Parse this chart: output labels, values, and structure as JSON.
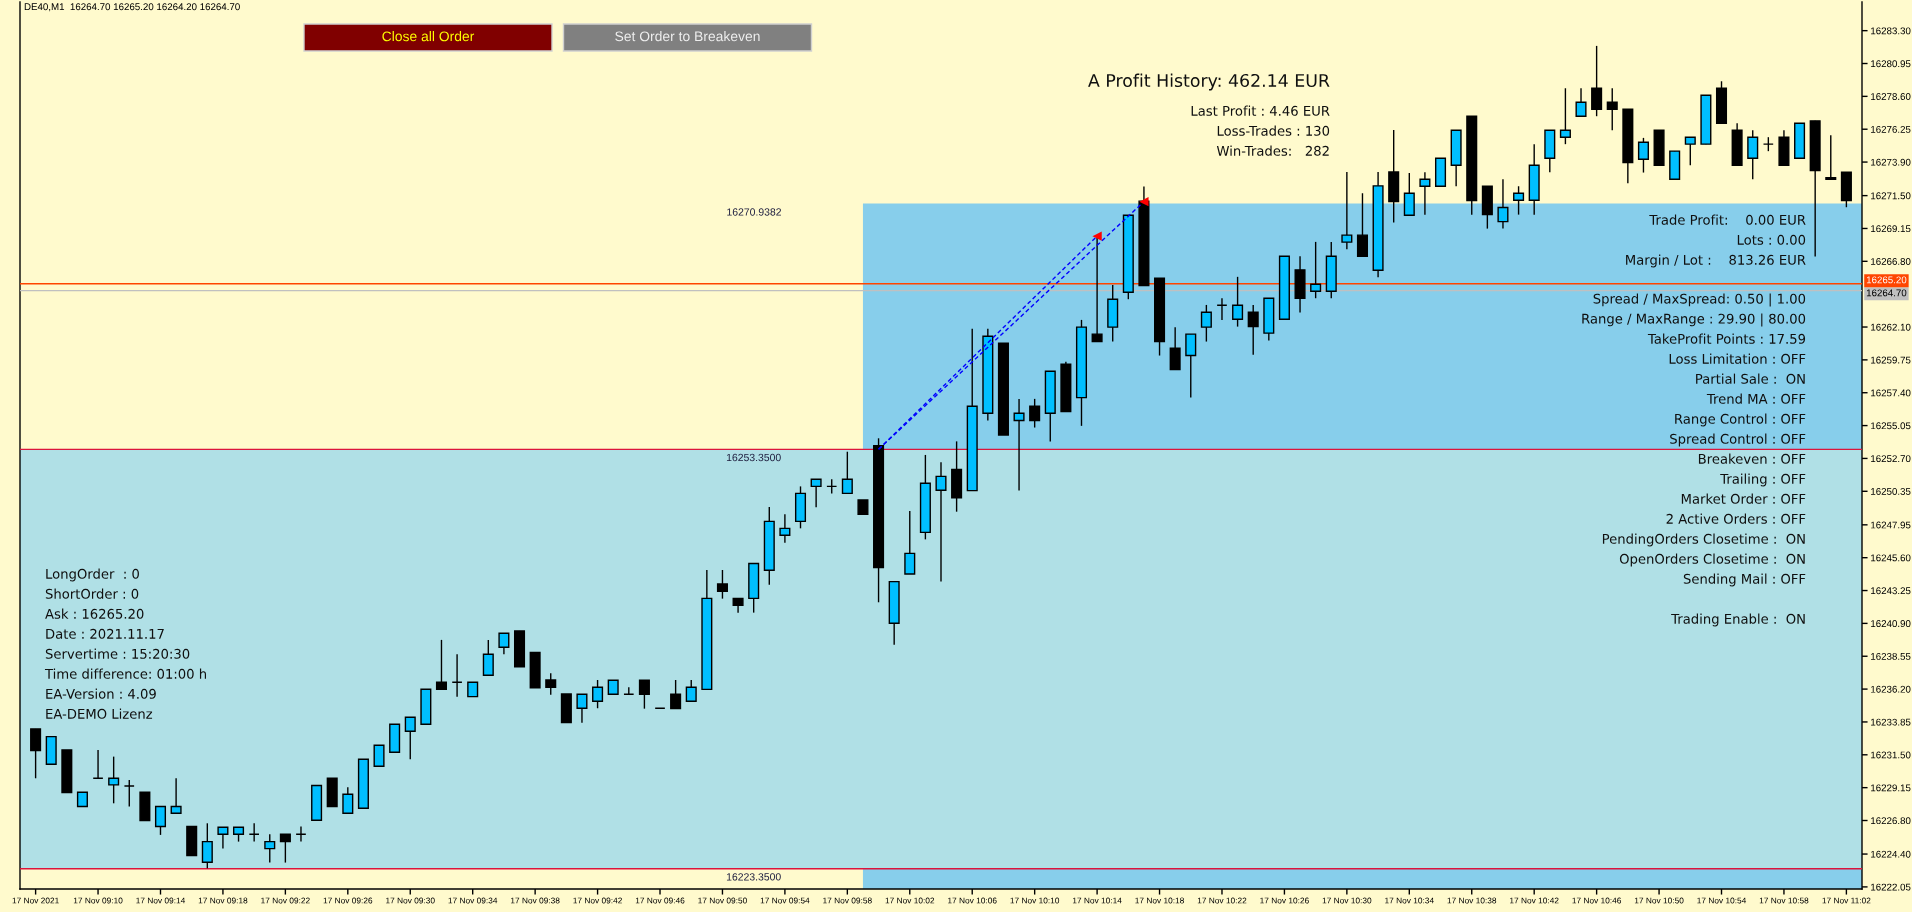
{
  "chart_data": {
    "type": "candlestick",
    "title": "DE40,M1  16264.70 16265.20 16264.20 16264.70",
    "x": [
      "2021-11-17T09:06",
      "2021-11-17T09:07",
      "2021-11-17T09:08",
      "2021-11-17T09:09",
      "2021-11-17T09:10",
      "2021-11-17T09:11",
      "2021-11-17T09:12",
      "2021-11-17T09:13",
      "2021-11-17T09:14",
      "2021-11-17T09:15",
      "2021-11-17T09:16",
      "2021-11-17T09:17",
      "2021-11-17T09:18",
      "2021-11-17T09:19",
      "2021-11-17T09:20",
      "2021-11-17T09:21",
      "2021-11-17T09:22",
      "2021-11-17T09:23",
      "2021-11-17T09:24",
      "2021-11-17T09:25",
      "2021-11-17T09:26",
      "2021-11-17T09:27",
      "2021-11-17T09:28",
      "2021-11-17T09:29",
      "2021-11-17T09:30",
      "2021-11-17T09:31",
      "2021-11-17T09:32",
      "2021-11-17T09:33",
      "2021-11-17T09:34",
      "2021-11-17T09:35",
      "2021-11-17T09:36",
      "2021-11-17T09:37",
      "2021-11-17T09:38",
      "2021-11-17T09:39",
      "2021-11-17T09:40",
      "2021-11-17T09:41",
      "2021-11-17T09:42",
      "2021-11-17T09:43",
      "2021-11-17T09:44",
      "2021-11-17T09:45",
      "2021-11-17T09:46",
      "2021-11-17T09:47",
      "2021-11-17T09:48",
      "2021-11-17T09:49",
      "2021-11-17T09:50",
      "2021-11-17T09:51",
      "2021-11-17T09:52",
      "2021-11-17T09:53",
      "2021-11-17T09:54",
      "2021-11-17T09:55",
      "2021-11-17T09:56",
      "2021-11-17T09:57",
      "2021-11-17T09:58",
      "2021-11-17T09:59",
      "2021-11-17T10:00",
      "2021-11-17T10:01",
      "2021-11-17T10:02",
      "2021-11-17T10:03",
      "2021-11-17T10:04",
      "2021-11-17T10:05",
      "2021-11-17T10:06",
      "2021-11-17T10:07",
      "2021-11-17T10:08",
      "2021-11-17T10:09",
      "2021-11-17T10:10",
      "2021-11-17T10:11",
      "2021-11-17T10:12",
      "2021-11-17T10:13",
      "2021-11-17T10:14",
      "2021-11-17T10:15",
      "2021-11-17T10:16",
      "2021-11-17T10:17",
      "2021-11-17T10:18",
      "2021-11-17T10:19",
      "2021-11-17T10:20",
      "2021-11-17T10:21",
      "2021-11-17T10:22",
      "2021-11-17T10:23",
      "2021-11-17T10:24",
      "2021-11-17T10:25",
      "2021-11-17T10:26",
      "2021-11-17T10:27",
      "2021-11-17T10:28",
      "2021-11-17T10:29",
      "2021-11-17T10:30",
      "2021-11-17T10:31",
      "2021-11-17T10:32",
      "2021-11-17T10:33",
      "2021-11-17T10:34",
      "2021-11-17T10:35",
      "2021-11-17T10:36",
      "2021-11-17T10:37",
      "2021-11-17T10:38",
      "2021-11-17T10:39",
      "2021-11-17T10:40",
      "2021-11-17T10:41",
      "2021-11-17T10:42",
      "2021-11-17T10:43",
      "2021-11-17T10:44",
      "2021-11-17T10:45",
      "2021-11-17T10:46",
      "2021-11-17T10:47",
      "2021-11-17T10:48",
      "2021-11-17T10:49",
      "2021-11-17T10:50",
      "2021-11-17T10:51",
      "2021-11-17T10:52",
      "2021-11-17T10:53",
      "2021-11-17T10:54",
      "2021-11-17T10:55",
      "2021-11-17T10:56",
      "2021-11-17T10:57",
      "2021-11-17T10:58",
      "2021-11-17T10:59",
      "2021-11-17T11:00",
      "2021-11-17T11:01",
      "2021-11-17T11:02"
    ],
    "ohlc": [
      [
        16233.35,
        16233.35,
        16229.82,
        16231.8
      ],
      [
        16230.82,
        16232.8,
        16230.82,
        16232.8
      ],
      [
        16231.85,
        16231.85,
        16228.8,
        16228.8
      ],
      [
        16227.8,
        16228.82,
        16227.8,
        16228.82
      ],
      [
        16229.82,
        16231.85,
        16229.82,
        16229.82
      ],
      [
        16229.35,
        16231.37,
        16228.03,
        16229.82
      ],
      [
        16229.27,
        16229.7,
        16227.8,
        16229.27
      ],
      [
        16228.82,
        16228.82,
        16226.79,
        16226.79
      ],
      [
        16226.37,
        16227.8,
        16225.77,
        16227.8
      ],
      [
        16227.32,
        16229.82,
        16227.32,
        16227.8
      ],
      [
        16226.37,
        16226.37,
        16224.29,
        16224.29
      ],
      [
        16223.81,
        16226.6,
        16223.38,
        16225.29
      ],
      [
        16225.82,
        16226.32,
        16224.79,
        16226.32
      ],
      [
        16225.82,
        16226.32,
        16225.29,
        16226.32
      ],
      [
        16225.82,
        16226.6,
        16225.29,
        16225.82
      ],
      [
        16224.79,
        16225.82,
        16223.79,
        16225.29
      ],
      [
        16225.82,
        16225.82,
        16223.79,
        16225.29
      ],
      [
        16225.82,
        16226.37,
        16225.29,
        16225.82
      ],
      [
        16226.82,
        16229.3,
        16226.82,
        16229.3
      ],
      [
        16229.82,
        16229.82,
        16227.8,
        16227.8
      ],
      [
        16227.32,
        16229.18,
        16227.32,
        16228.68
      ],
      [
        16227.68,
        16231.18,
        16227.68,
        16231.18
      ],
      [
        16230.68,
        16232.18,
        16230.68,
        16232.18
      ],
      [
        16231.68,
        16233.69,
        16231.68,
        16233.69
      ],
      [
        16233.18,
        16234.19,
        16231.18,
        16234.19
      ],
      [
        16233.69,
        16236.19,
        16233.69,
        16236.19
      ],
      [
        16236.69,
        16239.72,
        16236.19,
        16236.19
      ],
      [
        16236.69,
        16238.69,
        16235.66,
        16236.69
      ],
      [
        16235.66,
        16236.69,
        16235.66,
        16236.69
      ],
      [
        16237.19,
        16239.72,
        16237.19,
        16238.69
      ],
      [
        16239.19,
        16240.19,
        16238.69,
        16240.19
      ],
      [
        16240.36,
        16240.36,
        16237.8,
        16237.8
      ],
      [
        16238.83,
        16238.83,
        16236.3,
        16236.3
      ],
      [
        16236.85,
        16237.33,
        16235.8,
        16236.33
      ],
      [
        16235.85,
        16235.85,
        16233.8,
        16233.8
      ],
      [
        16234.83,
        16235.83,
        16233.8,
        16235.83
      ],
      [
        16235.33,
        16236.85,
        16234.83,
        16236.33
      ],
      [
        16235.83,
        16236.83,
        16235.83,
        16236.83
      ],
      [
        16235.83,
        16236.33,
        16235.83,
        16235.83
      ],
      [
        16236.83,
        16236.83,
        16234.8,
        16235.83
      ],
      [
        16234.83,
        16234.83,
        16234.83,
        16234.83
      ],
      [
        16235.83,
        16236.85,
        16234.8,
        16234.8
      ],
      [
        16235.33,
        16236.85,
        16235.33,
        16236.33
      ],
      [
        16236.18,
        16244.72,
        16236.18,
        16242.69
      ],
      [
        16243.72,
        16244.72,
        16242.67,
        16243.19
      ],
      [
        16242.69,
        16242.69,
        16241.67,
        16242.19
      ],
      [
        16242.69,
        16245.18,
        16241.67,
        16245.18
      ],
      [
        16244.7,
        16249.23,
        16243.67,
        16248.2
      ],
      [
        16247.2,
        16248.7,
        16246.67,
        16247.7
      ],
      [
        16248.2,
        16250.7,
        16247.7,
        16250.2
      ],
      [
        16250.7,
        16251.21,
        16249.2,
        16251.21
      ],
      [
        16250.7,
        16251.21,
        16250.2,
        16250.7
      ],
      [
        16250.2,
        16253.18,
        16250.2,
        16251.21
      ],
      [
        16249.73,
        16249.73,
        16248.7,
        16248.7
      ],
      [
        16253.61,
        16254.14,
        16242.41,
        16244.89
      ],
      [
        16240.91,
        16243.89,
        16239.38,
        16243.89
      ],
      [
        16244.43,
        16248.94,
        16244.43,
        16245.91
      ],
      [
        16247.41,
        16252.95,
        16246.91,
        16250.92
      ],
      [
        16250.42,
        16252.42,
        16243.89,
        16251.42
      ],
      [
        16251.92,
        16253.92,
        16248.89,
        16249.89
      ],
      [
        16250.4,
        16261.97,
        16250.4,
        16256.43
      ],
      [
        16255.93,
        16261.97,
        16255.41,
        16261.44
      ],
      [
        16260.94,
        16260.94,
        16254.38,
        16254.38
      ],
      [
        16255.41,
        16256.96,
        16250.4,
        16255.93
      ],
      [
        16256.43,
        16256.96,
        16254.91,
        16255.41
      ],
      [
        16255.93,
        16258.94,
        16253.91,
        16258.94
      ],
      [
        16259.44,
        16259.61,
        16256.05,
        16256.05
      ],
      [
        16257.05,
        16262.61,
        16255.03,
        16262.09
      ],
      [
        16261.59,
        16268.57,
        16261.06,
        16261.06
      ],
      [
        16262.09,
        16265.11,
        16261.06,
        16264.09
      ],
      [
        16264.59,
        16270.1,
        16264.09,
        16270.1
      ],
      [
        16271.1,
        16272.15,
        16265.07,
        16265.07
      ],
      [
        16265.59,
        16265.59,
        16260.06,
        16261.06
      ],
      [
        16260.58,
        16262.09,
        16259.06,
        16259.06
      ],
      [
        16260.06,
        16261.59,
        16257.05,
        16261.59
      ],
      [
        16262.09,
        16263.68,
        16261.06,
        16263.16
      ],
      [
        16263.66,
        16264.16,
        16262.61,
        16263.66
      ],
      [
        16262.66,
        16265.69,
        16262.13,
        16263.66
      ],
      [
        16263.16,
        16263.68,
        16260.11,
        16262.13
      ],
      [
        16261.66,
        16264.16,
        16261.13,
        16264.16
      ],
      [
        16262.66,
        16267.16,
        16262.66,
        16267.16
      ],
      [
        16266.19,
        16267.16,
        16263.13,
        16264.16
      ],
      [
        16264.66,
        16268.19,
        16264.16,
        16265.16
      ],
      [
        16264.66,
        16268.19,
        16264.16,
        16267.16
      ],
      [
        16268.17,
        16273.19,
        16267.67,
        16268.67
      ],
      [
        16268.67,
        16271.67,
        16267.16,
        16267.16
      ],
      [
        16266.16,
        16273.19,
        16265.66,
        16272.2
      ],
      [
        16273.19,
        16276.2,
        16269.57,
        16271.07
      ],
      [
        16270.1,
        16273.12,
        16270.1,
        16271.67
      ],
      [
        16272.17,
        16273.17,
        16270.14,
        16272.67
      ],
      [
        16272.17,
        16274.17,
        16272.17,
        16274.17
      ],
      [
        16273.67,
        16276.18,
        16272.17,
        16276.18
      ],
      [
        16277.18,
        16277.18,
        16270.14,
        16271.15
      ],
      [
        16272.17,
        16272.17,
        16269.14,
        16270.14
      ],
      [
        16269.64,
        16272.67,
        16269.14,
        16270.65
      ],
      [
        16271.17,
        16272.17,
        16270.14,
        16271.67
      ],
      [
        16271.17,
        16275.18,
        16270.14,
        16273.67
      ],
      [
        16274.17,
        16276.18,
        16273.17,
        16276.18
      ],
      [
        16275.68,
        16279.18,
        16275.18,
        16276.18
      ],
      [
        16277.18,
        16279.18,
        16277.18,
        16278.18
      ],
      [
        16279.18,
        16282.21,
        16277.18,
        16277.68
      ],
      [
        16278.18,
        16279.18,
        16276.18,
        16277.68
      ],
      [
        16277.68,
        16277.68,
        16272.39,
        16273.87
      ],
      [
        16274.1,
        16275.63,
        16273.15,
        16275.32
      ],
      [
        16276.18,
        16276.18,
        16273.67,
        16273.67
      ],
      [
        16272.67,
        16274.68,
        16272.67,
        16274.68
      ],
      [
        16275.18,
        16275.68,
        16273.67,
        16275.68
      ],
      [
        16275.18,
        16278.68,
        16275.18,
        16278.68
      ],
      [
        16279.18,
        16279.68,
        16276.68,
        16276.68
      ],
      [
        16276.18,
        16276.68,
        16273.67,
        16273.67
      ],
      [
        16274.17,
        16276.18,
        16272.67,
        16275.68
      ],
      [
        16275.18,
        16275.68,
        16274.68,
        16275.18
      ],
      [
        16275.68,
        16276.18,
        16273.67,
        16273.67
      ],
      [
        16274.17,
        16276.68,
        16274.17,
        16276.68
      ],
      [
        16276.85,
        16276.85,
        16267.14,
        16273.29
      ],
      [
        16272.79,
        16275.82,
        16272.67,
        16272.67
      ],
      [
        16273.17,
        16273.17,
        16270.67,
        16271.15
      ]
    ],
    "colors": [
      "#000000",
      "#00bfff",
      "#000000",
      "#00bfff",
      "#000000",
      "#00bfff",
      "#000000",
      "#000000",
      "#00bfff",
      "#00bfff",
      "#000000",
      "#00bfff",
      "#00bfff",
      "#00bfff",
      "#000000",
      "#00bfff",
      "#000000",
      "#000000",
      "#00bfff",
      "#000000",
      "#00bfff",
      "#00bfff",
      "#00bfff",
      "#00bfff",
      "#00bfff",
      "#00bfff",
      "#000000",
      "#000000",
      "#00bfff",
      "#00bfff",
      "#00bfff",
      "#000000",
      "#000000",
      "#000000",
      "#000000",
      "#00bfff",
      "#00bfff",
      "#00bfff",
      "#000000",
      "#000000",
      "#000000",
      "#000000",
      "#00bfff",
      "#00bfff",
      "#000000",
      "#000000",
      "#00bfff",
      "#00bfff",
      "#00bfff",
      "#00bfff",
      "#00bfff",
      "#000000",
      "#00bfff",
      "#000000",
      "#000000",
      "#00bfff",
      "#00bfff",
      "#00bfff",
      "#00bfff",
      "#000000",
      "#00bfff",
      "#00bfff",
      "#000000",
      "#00bfff",
      "#000000",
      "#00bfff",
      "#000000",
      "#00bfff",
      "#000000",
      "#00bfff",
      "#00bfff",
      "#000000",
      "#000000",
      "#000000",
      "#00bfff",
      "#00bfff",
      "#000000",
      "#00bfff",
      "#000000",
      "#00bfff",
      "#00bfff",
      "#000000",
      "#00bfff",
      "#00bfff",
      "#00bfff",
      "#000000",
      "#00bfff",
      "#000000",
      "#00bfff",
      "#00bfff",
      "#00bfff",
      "#00bfff",
      "#000000",
      "#000000",
      "#00bfff",
      "#00bfff",
      "#00bfff",
      "#00bfff",
      "#00bfff",
      "#00bfff",
      "#000000",
      "#000000",
      "#000000",
      "#00bfff",
      "#000000",
      "#00bfff",
      "#00bfff",
      "#00bfff",
      "#000000",
      "#000000",
      "#00bfff",
      "#000000",
      "#000000",
      "#00bfff",
      "#000000",
      "#000000",
      "#000000"
    ],
    "xlim": [
      "2021-11-17T09:05",
      "2021-11-17T11:03"
    ],
    "xticks": [
      {
        "value": "2021-11-17T09:06",
        "label": "17 Nov 2021"
      },
      {
        "value": "2021-11-17T09:10",
        "label": "17 Nov 09:10"
      },
      {
        "value": "2021-11-17T09:14",
        "label": "17 Nov 09:14"
      },
      {
        "value": "2021-11-17T09:18",
        "label": "17 Nov 09:18"
      },
      {
        "value": "2021-11-17T09:22",
        "label": "17 Nov 09:22"
      },
      {
        "value": "2021-11-17T09:26",
        "label": "17 Nov 09:26"
      },
      {
        "value": "2021-11-17T09:30",
        "label": "17 Nov 09:30"
      },
      {
        "value": "2021-11-17T09:34",
        "label": "17 Nov 09:34"
      },
      {
        "value": "2021-11-17T09:38",
        "label": "17 Nov 09:38"
      },
      {
        "value": "2021-11-17T09:42",
        "label": "17 Nov 09:42"
      },
      {
        "value": "2021-11-17T09:46",
        "label": "17 Nov 09:46"
      },
      {
        "value": "2021-11-17T09:50",
        "label": "17 Nov 09:50"
      },
      {
        "value": "2021-11-17T09:54",
        "label": "17 Nov 09:54"
      },
      {
        "value": "2021-11-17T09:58",
        "label": "17 Nov 09:58"
      },
      {
        "value": "2021-11-17T10:02",
        "label": "17 Nov 10:02"
      },
      {
        "value": "2021-11-17T10:06",
        "label": "17 Nov 10:06"
      },
      {
        "value": "2021-11-17T10:10",
        "label": "17 Nov 10:10"
      },
      {
        "value": "2021-11-17T10:14",
        "label": "17 Nov 10:14"
      },
      {
        "value": "2021-11-17T10:18",
        "label": "17 Nov 10:18"
      },
      {
        "value": "2021-11-17T10:22",
        "label": "17 Nov 10:22"
      },
      {
        "value": "2021-11-17T10:26",
        "label": "17 Nov 10:26"
      },
      {
        "value": "2021-11-17T10:30",
        "label": "17 Nov 10:30"
      },
      {
        "value": "2021-11-17T10:34",
        "label": "17 Nov 10:34"
      },
      {
        "value": "2021-11-17T10:38",
        "label": "17 Nov 10:38"
      },
      {
        "value": "2021-11-17T10:42",
        "label": "17 Nov 10:42"
      },
      {
        "value": "2021-11-17T10:46",
        "label": "17 Nov 10:46"
      },
      {
        "value": "2021-11-17T10:50",
        "label": "17 Nov 10:50"
      },
      {
        "value": "2021-11-17T10:54",
        "label": "17 Nov 10:54"
      },
      {
        "value": "2021-11-17T10:58",
        "label": "17 Nov 10:58"
      },
      {
        "value": "2021-11-17T11:02",
        "label": "17 Nov 11:02"
      }
    ],
    "ylim": [
      16221.9,
      16285.35
    ],
    "yticks": [
      {
        "value": 16283.3,
        "label": "16283.30"
      },
      {
        "value": 16280.95,
        "label": "16280.95"
      },
      {
        "value": 16278.6,
        "label": "16278.60"
      },
      {
        "value": 16276.25,
        "label": "16276.25"
      },
      {
        "value": 16273.9,
        "label": "16273.90"
      },
      {
        "value": 16271.5,
        "label": "16271.50"
      },
      {
        "value": 16269.15,
        "label": "16269.15"
      },
      {
        "value": 16266.8,
        "label": "16266.80"
      },
      {
        "value": 16262.1,
        "label": "16262.10"
      },
      {
        "value": 16259.75,
        "label": "16259.75"
      },
      {
        "value": 16257.4,
        "label": "16257.40"
      },
      {
        "value": 16255.05,
        "label": "16255.05"
      },
      {
        "value": 16252.7,
        "label": "16252.70"
      },
      {
        "value": 16250.35,
        "label": "16250.35"
      },
      {
        "value": 16247.95,
        "label": "16247.95"
      },
      {
        "value": 16245.6,
        "label": "16245.60"
      },
      {
        "value": 16243.25,
        "label": "16243.25"
      },
      {
        "value": 16240.9,
        "label": "16240.90"
      },
      {
        "value": 16238.55,
        "label": "16238.55"
      },
      {
        "value": 16236.2,
        "label": "16236.20"
      },
      {
        "value": 16233.85,
        "label": "16233.85"
      },
      {
        "value": 16231.5,
        "label": "16231.50"
      },
      {
        "value": 16229.15,
        "label": "16229.15"
      },
      {
        "value": 16226.8,
        "label": "16226.80"
      },
      {
        "value": 16224.4,
        "label": "16224.40"
      },
      {
        "value": 16222.05,
        "label": "16222.05"
      }
    ],
    "series": [
      {
        "type": "area",
        "x": [
          "2021-11-17T09:59",
          "2021-11-17T11:03"
        ],
        "values": [
          16270.9382,
          16270.9382
        ],
        "color": "#87ceeb"
      },
      {
        "type": "line",
        "x": [
          "2021-11-17T10:00",
          "2021-11-17T10:17"
        ],
        "values": [
          16253.35,
          16271.07
        ],
        "color": "#0000ff",
        "line_style": "dashed"
      },
      {
        "type": "line",
        "x": [
          "2021-11-17T10:00",
          "2021-11-17T10:14"
        ],
        "values": [
          16253.35,
          16268.6
        ],
        "color": "#0000ff",
        "line_style": "dashed"
      },
      {
        "type": "scatter",
        "x": [
          "2021-11-17T10:14",
          "2021-11-17T10:17"
        ],
        "values": [
          16268.6,
          16271.07
        ],
        "color": "#ff0000",
        "marker": "triangle"
      }
    ],
    "bands": [
      {
        "axis": "y",
        "from": 16223.35,
        "to": 16253.35,
        "color": "#b0e0e6"
      }
    ],
    "ref_lines": [
      {
        "axis": "y",
        "value": 16253.35,
        "color": "#dc143c"
      },
      {
        "axis": "y",
        "value": 16223.35,
        "color": "#dc143c"
      },
      {
        "axis": "y",
        "value": 16265.2,
        "label": "16265.20",
        "color": "#ff4500"
      },
      {
        "axis": "y",
        "value": 16264.7,
        "label": "16264.70",
        "color": "#c0c0c0"
      }
    ],
    "annotations": [
      "Close all Order",
      "Set Order to Breakeven",
      "A Profit History: 462.14 EUR",
      "Last Profit : 4.46 EUR",
      "Loss-Trades : 130",
      "Win-Trades:   282",
      "Trade Profit:    0.00 EUR",
      "Lots : 0.00",
      "Margin / Lot :    813.26 EUR",
      "Spread / MaxSpread: 0.50 | 1.00",
      "Range / MaxRange : 29.90 | 80.00",
      "TakeProfit Points : 17.59",
      "Loss Limitation : OFF",
      "Partial Sale :  ON",
      "Trend MA : OFF",
      "Range Control : OFF",
      "Spread Control : OFF",
      "Breakeven : OFF",
      "Trailing : OFF",
      "Market Order : OFF",
      "2 Active Orders : OFF",
      "PendingOrders Closetime :  ON",
      "OpenOrders Closetime :  ON",
      "Sending Mail : OFF",
      "Trading Enable :  ON",
      "LongOrder  : 0",
      "ShortOrder : 0",
      "Ask : 16265.20",
      "Date : 2021.11.17",
      "Servertime : 15:20:30",
      "Time difference: 01:00 h",
      "EA-Version : 4.09",
      "EA-DEMO Lizenz",
      "16270.9382",
      {
        "text": "16253.3500",
        "x": "2021-11-17T09:52",
        "y": 16253.35
      },
      {
        "text": "16223.3500",
        "x": "2021-11-17T09:52",
        "y": 16223.35
      }
    ]
  }
}
